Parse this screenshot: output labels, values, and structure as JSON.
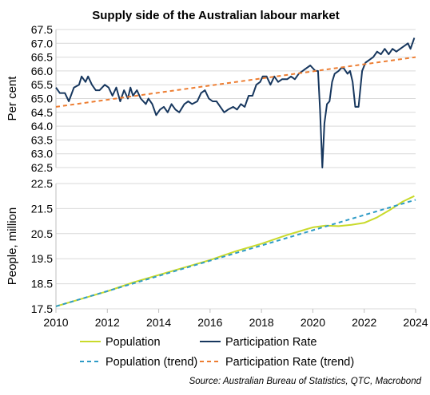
{
  "chart_data": {
    "title": "Supply side of the Australian labour market",
    "source": "Source: Australian Bureau of Statistics, QTC, Macrobond",
    "x_ticks": [
      "2010",
      "2012",
      "2014",
      "2016",
      "2018",
      "2020",
      "2022",
      "2024"
    ],
    "xlim": [
      2010,
      2024
    ],
    "legend_position": "bottom",
    "panels": [
      {
        "type": "line",
        "ylabel": "Per cent",
        "ylim": [
          62.5,
          67.5
        ],
        "y_ticks": [
          "62.5",
          "63.0",
          "63.5",
          "64.0",
          "64.5",
          "65.0",
          "65.5",
          "66.0",
          "66.5",
          "67.0",
          "67.5"
        ],
        "grid": true,
        "series": [
          {
            "name": "Participation Rate",
            "color": "#17375e",
            "style": "solid",
            "points": [
              [
                2010.0,
                65.4
              ],
              [
                2010.15,
                65.2
              ],
              [
                2010.35,
                65.2
              ],
              [
                2010.5,
                64.9
              ],
              [
                2010.7,
                65.4
              ],
              [
                2010.9,
                65.5
              ],
              [
                2011.0,
                65.8
              ],
              [
                2011.15,
                65.6
              ],
              [
                2011.25,
                65.8
              ],
              [
                2011.4,
                65.5
              ],
              [
                2011.55,
                65.3
              ],
              [
                2011.7,
                65.3
              ],
              [
                2011.9,
                65.5
              ],
              [
                2012.05,
                65.4
              ],
              [
                2012.2,
                65.1
              ],
              [
                2012.35,
                65.4
              ],
              [
                2012.5,
                64.9
              ],
              [
                2012.65,
                65.3
              ],
              [
                2012.8,
                65.0
              ],
              [
                2012.9,
                65.4
              ],
              [
                2013.0,
                65.1
              ],
              [
                2013.15,
                65.3
              ],
              [
                2013.3,
                65.0
              ],
              [
                2013.5,
                64.8
              ],
              [
                2013.6,
                65.0
              ],
              [
                2013.75,
                64.8
              ],
              [
                2013.9,
                64.4
              ],
              [
                2014.05,
                64.6
              ],
              [
                2014.2,
                64.7
              ],
              [
                2014.35,
                64.5
              ],
              [
                2014.5,
                64.8
              ],
              [
                2014.65,
                64.6
              ],
              [
                2014.8,
                64.5
              ],
              [
                2015.0,
                64.8
              ],
              [
                2015.15,
                64.9
              ],
              [
                2015.3,
                64.8
              ],
              [
                2015.5,
                64.9
              ],
              [
                2015.65,
                65.2
              ],
              [
                2015.8,
                65.3
              ],
              [
                2015.95,
                65.0
              ],
              [
                2016.1,
                64.9
              ],
              [
                2016.25,
                64.9
              ],
              [
                2016.4,
                64.7
              ],
              [
                2016.55,
                64.5
              ],
              [
                2016.7,
                64.6
              ],
              [
                2016.9,
                64.7
              ],
              [
                2017.05,
                64.6
              ],
              [
                2017.2,
                64.8
              ],
              [
                2017.35,
                64.7
              ],
              [
                2017.5,
                65.1
              ],
              [
                2017.65,
                65.1
              ],
              [
                2017.8,
                65.5
              ],
              [
                2017.95,
                65.6
              ],
              [
                2018.05,
                65.8
              ],
              [
                2018.2,
                65.8
              ],
              [
                2018.35,
                65.5
              ],
              [
                2018.5,
                65.8
              ],
              [
                2018.65,
                65.6
              ],
              [
                2018.8,
                65.7
              ],
              [
                2019.0,
                65.7
              ],
              [
                2019.15,
                65.8
              ],
              [
                2019.3,
                65.7
              ],
              [
                2019.45,
                65.9
              ],
              [
                2019.6,
                66.0
              ],
              [
                2019.75,
                66.1
              ],
              [
                2019.9,
                66.2
              ],
              [
                2020.1,
                66.0
              ],
              [
                2020.2,
                66.0
              ],
              [
                2020.28,
                64.6
              ],
              [
                2020.37,
                62.5
              ],
              [
                2020.45,
                64.1
              ],
              [
                2020.55,
                64.8
              ],
              [
                2020.65,
                64.9
              ],
              [
                2020.75,
                65.6
              ],
              [
                2020.85,
                65.9
              ],
              [
                2021.0,
                66.0
              ],
              [
                2021.1,
                66.1
              ],
              [
                2021.2,
                66.1
              ],
              [
                2021.35,
                65.9
              ],
              [
                2021.45,
                66.0
              ],
              [
                2021.55,
                65.6
              ],
              [
                2021.65,
                64.7
              ],
              [
                2021.78,
                64.7
              ],
              [
                2021.92,
                66.0
              ],
              [
                2022.05,
                66.3
              ],
              [
                2022.2,
                66.4
              ],
              [
                2022.35,
                66.5
              ],
              [
                2022.5,
                66.7
              ],
              [
                2022.65,
                66.6
              ],
              [
                2022.8,
                66.8
              ],
              [
                2022.95,
                66.6
              ],
              [
                2023.1,
                66.8
              ],
              [
                2023.25,
                66.7
              ],
              [
                2023.4,
                66.8
              ],
              [
                2023.55,
                66.9
              ],
              [
                2023.7,
                67.0
              ],
              [
                2023.8,
                66.8
              ],
              [
                2023.95,
                67.2
              ]
            ]
          },
          {
            "name": "Participation Rate (trend)",
            "color": "#ed7d31",
            "style": "dashed",
            "points": [
              [
                2010.0,
                64.7
              ],
              [
                2024.0,
                66.5
              ]
            ]
          }
        ]
      },
      {
        "type": "line",
        "ylabel": "People, million",
        "ylim": [
          17.5,
          22.5
        ],
        "y_ticks": [
          "17.5",
          "18.5",
          "19.5",
          "20.5",
          "21.5",
          "22.5"
        ],
        "grid": true,
        "series": [
          {
            "name": "Population",
            "color": "#c9da2b",
            "style": "solid",
            "points": [
              [
                2010.0,
                17.6
              ],
              [
                2011.0,
                17.9
              ],
              [
                2012.0,
                18.2
              ],
              [
                2013.0,
                18.55
              ],
              [
                2014.0,
                18.85
              ],
              [
                2015.0,
                19.15
              ],
              [
                2016.0,
                19.45
              ],
              [
                2017.0,
                19.8
              ],
              [
                2018.0,
                20.1
              ],
              [
                2019.0,
                20.45
              ],
              [
                2020.0,
                20.75
              ],
              [
                2020.5,
                20.82
              ],
              [
                2021.0,
                20.8
              ],
              [
                2021.5,
                20.85
              ],
              [
                2022.0,
                20.93
              ],
              [
                2022.5,
                21.15
              ],
              [
                2023.0,
                21.45
              ],
              [
                2023.5,
                21.78
              ],
              [
                2023.95,
                22.0
              ]
            ]
          },
          {
            "name": "Population (trend)",
            "color": "#2e9bc6",
            "style": "dashed",
            "points": [
              [
                2010.0,
                17.6
              ],
              [
                2024.0,
                21.85
              ]
            ]
          }
        ]
      }
    ],
    "legend": [
      {
        "label": "Population",
        "color": "#c9da2b",
        "style": "solid"
      },
      {
        "label": "Participation Rate",
        "color": "#17375e",
        "style": "solid"
      },
      {
        "label": "Population (trend)",
        "color": "#2e9bc6",
        "style": "dashed"
      },
      {
        "label": "Participation Rate (trend)",
        "color": "#ed7d31",
        "style": "dashed"
      }
    ]
  }
}
